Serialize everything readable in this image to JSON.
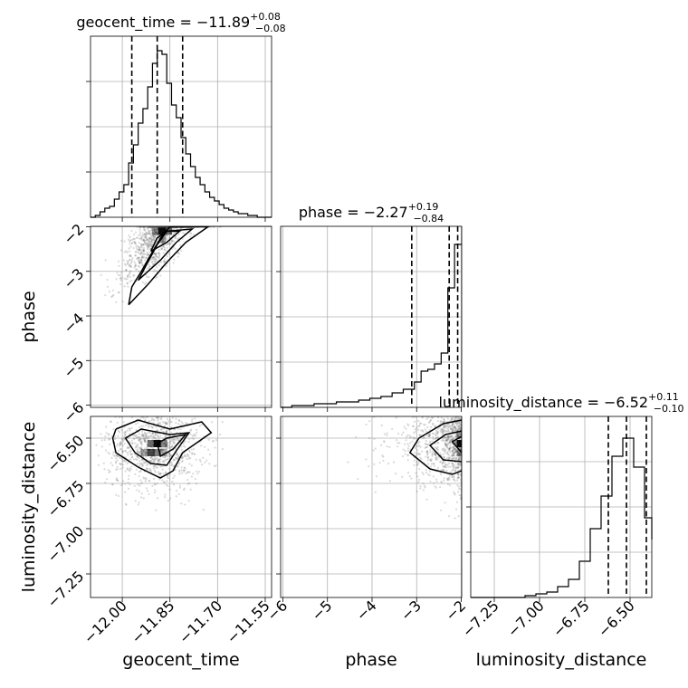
{
  "chart_data": {
    "type": "corner",
    "parameters": [
      {
        "name": "geocent_time",
        "xlabel": "geocent_time",
        "ylabel": "",
        "range": [
          -12.1,
          -11.53
        ],
        "ticks": [
          -12.0,
          -11.85,
          -11.7,
          -11.55
        ],
        "tick_labels": [
          "−12.00",
          "−11.85",
          "−11.70",
          "−11.55"
        ],
        "title": "geocent_time = −11.89",
        "title_sup": "+0.08",
        "title_sub": "−0.08",
        "quantiles": [
          -11.97,
          -11.89,
          -11.81
        ],
        "hist_edges": [
          -12.1,
          -12.085,
          -12.07,
          -12.055,
          -12.04,
          -12.025,
          -12.01,
          -11.995,
          -11.98,
          -11.965,
          -11.95,
          -11.935,
          -11.92,
          -11.905,
          -11.89,
          -11.875,
          -11.86,
          -11.845,
          -11.83,
          -11.815,
          -11.8,
          -11.785,
          -11.77,
          -11.755,
          -11.74,
          -11.725,
          -11.71,
          -11.695,
          -11.68,
          -11.665,
          -11.65,
          -11.635,
          -11.62,
          -11.605,
          -11.59,
          -11.575,
          -11.56,
          -11.545,
          -11.53
        ],
        "hist_counts": [
          0,
          1,
          3,
          5,
          6,
          10,
          14,
          18,
          30,
          40,
          52,
          60,
          72,
          85,
          92,
          90,
          74,
          62,
          55,
          44,
          35,
          28,
          22,
          18,
          14,
          11,
          9,
          7,
          5,
          4,
          3,
          2,
          2,
          1,
          1,
          0,
          0,
          0
        ],
        "hist_max": 100
      },
      {
        "name": "phase",
        "xlabel": "phase",
        "ylabel": "phase",
        "range": [
          -6.05,
          -1.99
        ],
        "ticks": [
          -6,
          -5,
          -4,
          -3,
          -2
        ],
        "tick_labels": [
          "−6",
          "−5",
          "−4",
          "−3",
          "−2"
        ],
        "title": "phase = −2.27",
        "title_sup": "+0.19",
        "title_sub": "−0.84",
        "quantiles": [
          -3.11,
          -2.27,
          -2.08
        ],
        "hist_edges": [
          -6.05,
          -5.8,
          -5.55,
          -5.3,
          -5.05,
          -4.8,
          -4.55,
          -4.3,
          -4.05,
          -3.8,
          -3.55,
          -3.3,
          -3.05,
          -2.9,
          -2.75,
          -2.6,
          -2.45,
          -2.3,
          -2.15,
          -1.99
        ],
        "hist_counts": [
          0,
          1,
          1,
          2,
          2,
          3,
          3,
          4,
          5,
          6,
          8,
          10,
          14,
          20,
          21,
          24,
          30,
          66,
          90
        ],
        "hist_max": 100
      },
      {
        "name": "luminosity_distance",
        "xlabel": "luminosity_distance",
        "ylabel": "luminosity_distance",
        "range": [
          -7.38,
          -6.38
        ],
        "ticks": [
          -7.25,
          -7.0,
          -6.75,
          -6.5
        ],
        "tick_labels": [
          "−7.25",
          "−7.00",
          "−6.75",
          "−6.50"
        ],
        "title": "luminosity_distance = −6.52",
        "title_sup": "+0.11",
        "title_sub": "−0.10",
        "quantiles": [
          -6.62,
          -6.52,
          -6.41
        ],
        "hist_edges": [
          -7.38,
          -7.08,
          -7.02,
          -6.96,
          -6.9,
          -6.84,
          -6.78,
          -6.72,
          -6.66,
          -6.6,
          -6.54,
          -6.48,
          -6.42,
          -6.38
        ],
        "hist_counts": [
          0,
          1,
          2,
          3,
          6,
          10,
          20,
          38,
          56,
          78,
          88,
          72,
          44,
          32
        ],
        "hist_max": 100
      }
    ],
    "scatter": [
      {
        "x_param": 0,
        "y_param": 1,
        "center": [
          -11.88,
          -2.1
        ],
        "spread": [
          0.06,
          0.55
        ],
        "corr": 0.75,
        "n": 1100
      },
      {
        "x_param": 0,
        "y_param": 2,
        "center": [
          -11.9,
          -6.55
        ],
        "spread": [
          0.075,
          0.12
        ],
        "corr": 0.0,
        "n": 1000
      },
      {
        "x_param": 1,
        "y_param": 2,
        "center": [
          -2.2,
          -6.52
        ],
        "spread": [
          0.7,
          0.12
        ],
        "corr": 0.0,
        "n": 1000
      }
    ],
    "contours": [
      {
        "x_param": 0,
        "y_param": 1,
        "levels": [
          [
            [
              -11.98,
              -3.75
            ],
            [
              -11.97,
              -3.35
            ],
            [
              -11.94,
              -3.0
            ],
            [
              -11.9,
              -2.5
            ],
            [
              -11.87,
              -2.15
            ],
            [
              -11.85,
              -2.0
            ],
            [
              -11.73,
              -2.0
            ],
            [
              -11.8,
              -2.35
            ],
            [
              -11.86,
              -2.8
            ],
            [
              -11.92,
              -3.3
            ],
            [
              -11.98,
              -3.75
            ]
          ],
          [
            [
              -11.95,
              -3.2
            ],
            [
              -11.92,
              -2.8
            ],
            [
              -11.89,
              -2.4
            ],
            [
              -11.86,
              -2.1
            ],
            [
              -11.78,
              -2.05
            ],
            [
              -11.83,
              -2.35
            ],
            [
              -11.88,
              -2.75
            ],
            [
              -11.95,
              -3.2
            ]
          ],
          [
            [
              -11.91,
              -2.55
            ],
            [
              -11.89,
              -2.25
            ],
            [
              -11.86,
              -2.1
            ],
            [
              -11.82,
              -2.1
            ],
            [
              -11.86,
              -2.35
            ],
            [
              -11.91,
              -2.55
            ]
          ]
        ]
      },
      {
        "x_param": 0,
        "y_param": 2,
        "levels": [
          [
            [
              -12.02,
              -6.45
            ],
            [
              -11.95,
              -6.4
            ],
            [
              -11.85,
              -6.45
            ],
            [
              -11.75,
              -6.41
            ],
            [
              -11.72,
              -6.47
            ],
            [
              -11.81,
              -6.58
            ],
            [
              -11.84,
              -6.68
            ],
            [
              -11.88,
              -6.72
            ],
            [
              -11.95,
              -6.66
            ],
            [
              -12.02,
              -6.58
            ],
            [
              -12.03,
              -6.5
            ],
            [
              -12.02,
              -6.45
            ]
          ],
          [
            [
              -11.99,
              -6.5
            ],
            [
              -11.94,
              -6.45
            ],
            [
              -11.85,
              -6.48
            ],
            [
              -11.79,
              -6.47
            ],
            [
              -11.83,
              -6.57
            ],
            [
              -11.86,
              -6.65
            ],
            [
              -11.91,
              -6.64
            ],
            [
              -11.96,
              -6.58
            ],
            [
              -11.99,
              -6.5
            ]
          ],
          [
            [
              -11.89,
              -6.53
            ],
            [
              -11.86,
              -6.5
            ],
            [
              -11.8,
              -6.48
            ],
            [
              -11.84,
              -6.56
            ],
            [
              -11.88,
              -6.6
            ],
            [
              -11.89,
              -6.53
            ]
          ]
        ]
      },
      {
        "x_param": 1,
        "y_param": 2,
        "levels": [
          [
            [
              -1.99,
              -6.4
            ],
            [
              -2.4,
              -6.42
            ],
            [
              -2.95,
              -6.5
            ],
            [
              -3.15,
              -6.58
            ],
            [
              -2.7,
              -6.67
            ],
            [
              -2.2,
              -6.7
            ],
            [
              -1.99,
              -6.68
            ]
          ],
          [
            [
              -1.99,
              -6.46
            ],
            [
              -2.35,
              -6.48
            ],
            [
              -2.7,
              -6.54
            ],
            [
              -2.4,
              -6.62
            ],
            [
              -1.99,
              -6.63
            ]
          ],
          [
            [
              -1.99,
              -6.49
            ],
            [
              -2.2,
              -6.52
            ],
            [
              -1.99,
              -6.58
            ]
          ]
        ]
      }
    ],
    "density_cells": [
      {
        "x_param": 0,
        "y_param": 1,
        "cells": [
          [
            -11.875,
            -2.1,
            0.95
          ],
          [
            -11.855,
            -2.1,
            0.55
          ],
          [
            -11.895,
            -2.1,
            0.4
          ],
          [
            -11.875,
            -2.28,
            0.3
          ]
        ]
      },
      {
        "x_param": 0,
        "y_param": 2,
        "cells": [
          [
            -11.89,
            -6.53,
            0.95
          ],
          [
            -11.91,
            -6.53,
            0.55
          ],
          [
            -11.89,
            -6.58,
            0.5
          ],
          [
            -11.91,
            -6.58,
            0.7
          ],
          [
            -11.87,
            -6.53,
            0.45
          ],
          [
            -11.93,
            -6.58,
            0.35
          ],
          [
            -11.87,
            -6.58,
            0.3
          ]
        ]
      },
      {
        "x_param": 1,
        "y_param": 2,
        "cells": [
          [
            -2.02,
            -6.53,
            0.95
          ],
          [
            -2.02,
            -6.58,
            0.4
          ],
          [
            -2.02,
            -6.48,
            0.3
          ]
        ]
      }
    ]
  }
}
